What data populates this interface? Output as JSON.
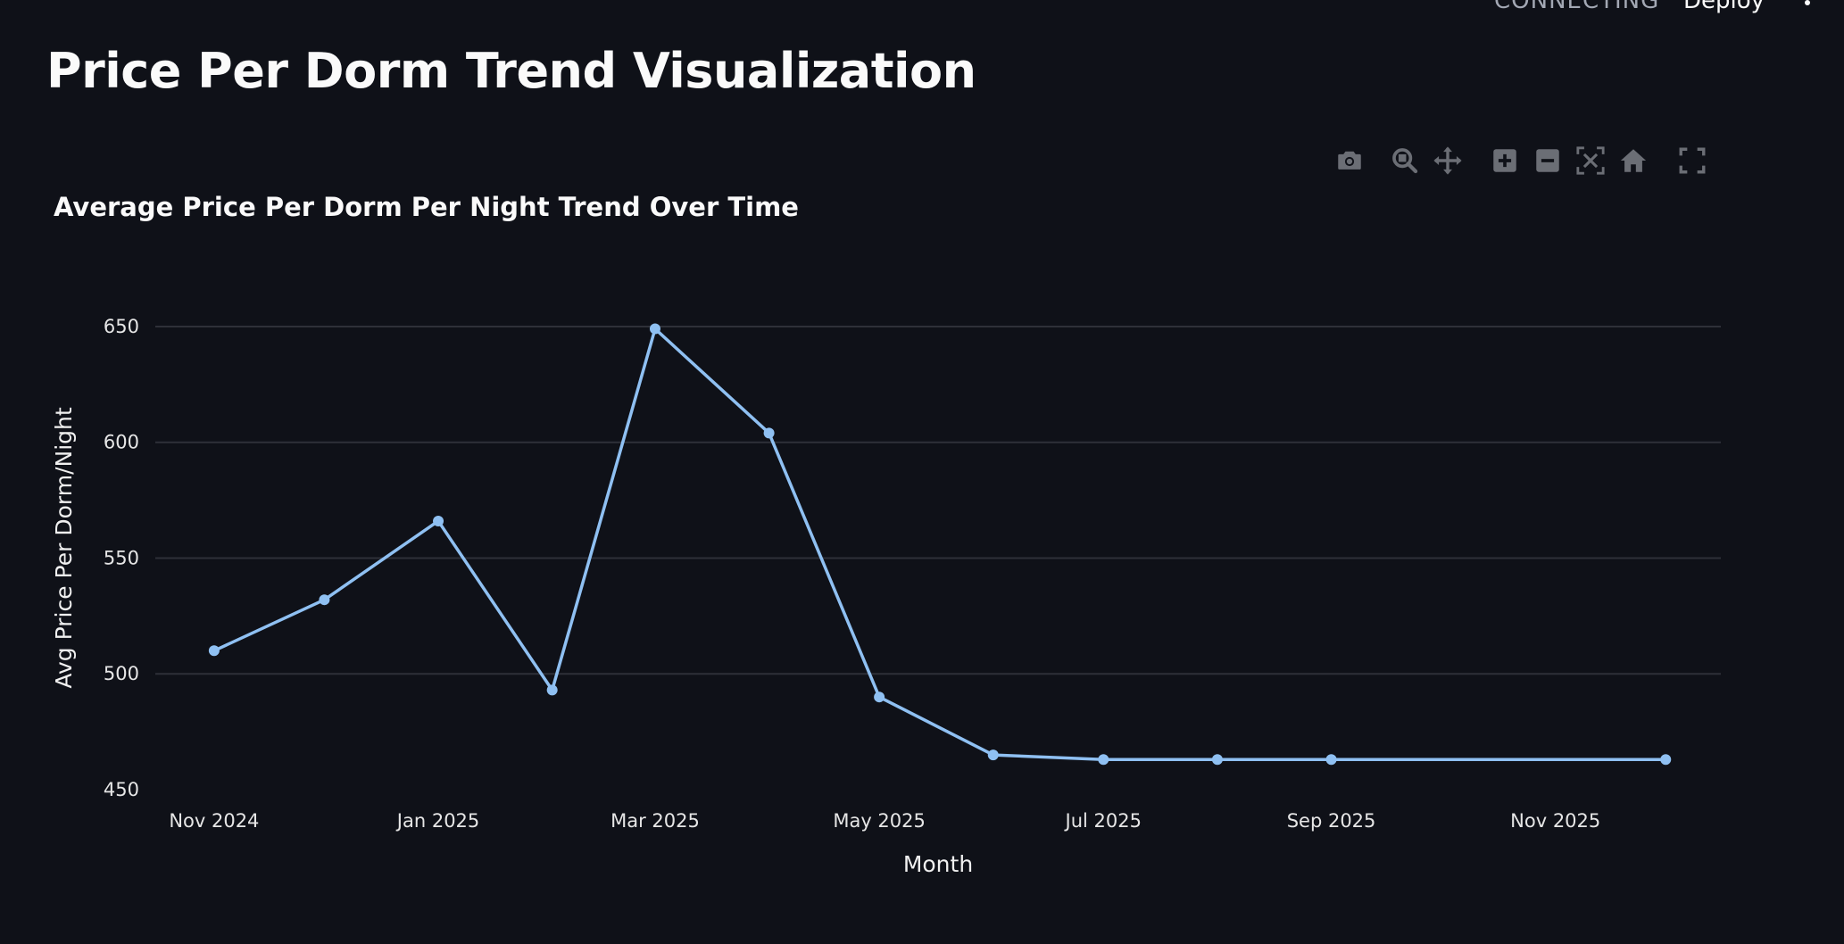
{
  "app": {
    "status": "CONNECTING",
    "deploy_label": "Deploy",
    "menu_icon": "kebab-menu-icon",
    "page_title": "Price Per Dorm Trend Visualization"
  },
  "modebar": {
    "icons": [
      "camera-icon",
      "zoom-icon",
      "pan-icon",
      "zoom-in-icon",
      "zoom-out-icon",
      "autoscale-icon",
      "reset-axes-icon",
      "fullscreen-icon"
    ],
    "icon_color": "#6b6e75"
  },
  "colors": {
    "background": "#0f1118",
    "line": "#8fc0f2",
    "grid": "#2e3038",
    "text": "#fafafa"
  },
  "chart_data": {
    "type": "line",
    "title": "Average Price Per Dorm Per Night Trend Over Time",
    "xlabel": "Month",
    "ylabel": "Avg Price Per Dorm/Night",
    "x": [
      "2024-11",
      "2024-12",
      "2025-01",
      "2025-02",
      "2025-03",
      "2025-04",
      "2025-05",
      "2025-06",
      "2025-07",
      "2025-08",
      "2025-09",
      "2025-12"
    ],
    "values": [
      510,
      532,
      566,
      493,
      649,
      604,
      490,
      465,
      463,
      463,
      463,
      463
    ],
    "ylim": [
      450,
      660
    ],
    "yticks": [
      450,
      500,
      550,
      600,
      650
    ],
    "xticks": [
      {
        "date": "2024-11",
        "label": "Nov 2024"
      },
      {
        "date": "2025-01",
        "label": "Jan 2025"
      },
      {
        "date": "2025-03",
        "label": "Mar 2025"
      },
      {
        "date": "2025-05",
        "label": "May 2025"
      },
      {
        "date": "2025-07",
        "label": "Jul 2025"
      },
      {
        "date": "2025-09",
        "label": "Sep 2025"
      },
      {
        "date": "2025-11",
        "label": "Nov 2025"
      }
    ],
    "grid": true,
    "markers": true
  }
}
